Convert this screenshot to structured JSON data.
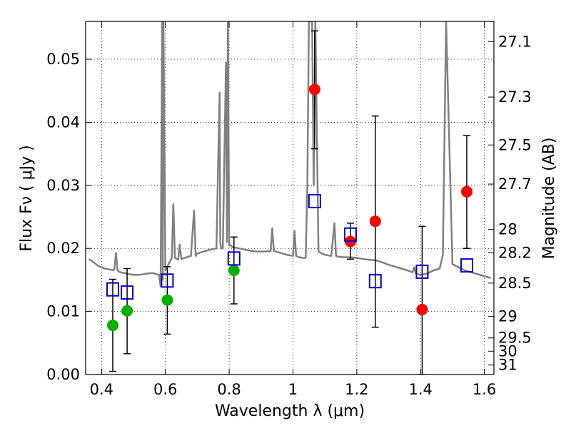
{
  "chart_data": {
    "type": "scatter",
    "xlabel": "Wavelength  λ (μm)",
    "ylabel": "Flux  Fν  ( μJy )",
    "y2label": "Magnitude (AB)",
    "xlim": [
      0.35,
      1.63
    ],
    "ylim": [
      0.0,
      0.056
    ],
    "grid": true,
    "x_ticks": [
      0.4,
      0.6,
      0.8,
      1.0,
      1.2,
      1.4,
      1.6
    ],
    "x_tick_labels": [
      "0.4",
      "0.6",
      "0.8",
      "1",
      "1.2",
      "1.4",
      "1.6"
    ],
    "y_ticks": [
      0.0,
      0.01,
      0.02,
      0.03,
      0.04,
      0.05
    ],
    "y_tick_labels": [
      "0.00",
      "0.01",
      "0.02",
      "0.03",
      "0.04",
      "0.05"
    ],
    "y2_ticks": [
      {
        "flux": 0.0528,
        "label": "27.1"
      },
      {
        "flux": 0.044,
        "label": "27.3"
      },
      {
        "flux": 0.0364,
        "label": "27.5"
      },
      {
        "flux": 0.0302,
        "label": "27.7"
      },
      {
        "flux": 0.023,
        "label": "28"
      },
      {
        "flux": 0.0193,
        "label": "28.2"
      },
      {
        "flux": 0.0145,
        "label": "28.5"
      },
      {
        "flux": 0.0092,
        "label": "29"
      },
      {
        "flux": 0.0058,
        "label": "29.5"
      },
      {
        "flux": 0.0037,
        "label": "30"
      },
      {
        "flux": 0.0015,
        "label": "31"
      }
    ],
    "series": [
      {
        "name": "model spectrum",
        "style": "line",
        "color": "#808080",
        "x": [
          0.36,
          0.37,
          0.38,
          0.39,
          0.4,
          0.41,
          0.42,
          0.43,
          0.44,
          0.445,
          0.45,
          0.455,
          0.46,
          0.48,
          0.5,
          0.52,
          0.54,
          0.56,
          0.58,
          0.585,
          0.59,
          0.592,
          0.594,
          0.6,
          0.62,
          0.625,
          0.63,
          0.64,
          0.645,
          0.65,
          0.66,
          0.68,
          0.69,
          0.695,
          0.7,
          0.72,
          0.74,
          0.76,
          0.77,
          0.772,
          0.775,
          0.78,
          0.79,
          0.793,
          0.796,
          0.8,
          0.805,
          0.81,
          0.83,
          0.85,
          0.87,
          0.89,
          0.91,
          0.93,
          0.935,
          0.94,
          0.96,
          0.98,
          1.0,
          1.005,
          1.01,
          1.02,
          1.03,
          1.04,
          1.045,
          1.05,
          1.06,
          1.065,
          1.07,
          1.08,
          1.09,
          1.1,
          1.12,
          1.13,
          1.135,
          1.14,
          1.16,
          1.18,
          1.2,
          1.22,
          1.24,
          1.26,
          1.28,
          1.3,
          1.32,
          1.34,
          1.36,
          1.375,
          1.38,
          1.385,
          1.4,
          1.42,
          1.44,
          1.46,
          1.47,
          1.48,
          1.5,
          1.52,
          1.54,
          1.56,
          1.58,
          1.6,
          1.62
        ],
        "y": [
          0.0183,
          0.018,
          0.0176,
          0.0172,
          0.017,
          0.0168,
          0.0167,
          0.0166,
          0.0166,
          0.0193,
          0.0165,
          0.0163,
          0.0162,
          0.016,
          0.0158,
          0.0158,
          0.016,
          0.0161,
          0.0158,
          0.014,
          0.056,
          0.015,
          0.056,
          0.0165,
          0.0185,
          0.027,
          0.0185,
          0.0182,
          0.0206,
          0.0183,
          0.0185,
          0.0188,
          0.026,
          0.0188,
          0.0192,
          0.0195,
          0.0198,
          0.02,
          0.0447,
          0.021,
          0.02,
          0.02,
          0.0495,
          0.021,
          0.056,
          0.0205,
          0.0205,
          0.0202,
          0.02,
          0.0198,
          0.0196,
          0.0195,
          0.0195,
          0.0196,
          0.0232,
          0.0196,
          0.0193,
          0.019,
          0.0188,
          0.0228,
          0.0188,
          0.0186,
          0.0185,
          0.0185,
          0.03,
          0.056,
          0.056,
          0.03,
          0.056,
          0.0195,
          0.0192,
          0.019,
          0.0188,
          0.024,
          0.0188,
          0.0187,
          0.0186,
          0.0186,
          0.0185,
          0.0183,
          0.0182,
          0.0181,
          0.0178,
          0.0174,
          0.0171,
          0.0168,
          0.0165,
          0.0162,
          0.017,
          0.016,
          0.0158,
          0.016,
          0.0165,
          0.0168,
          0.019,
          0.056,
          0.0175,
          0.017,
          0.0165,
          0.0162,
          0.0159,
          0.0156,
          0.0153
        ]
      },
      {
        "name": "red points",
        "style": "circle",
        "color": "#ff0000",
        "x": [
          1.068,
          1.18,
          1.258,
          1.405,
          1.545
        ],
        "y": [
          0.0452,
          0.0211,
          0.0243,
          0.0103,
          0.029
        ],
        "yerr_low": [
          0.0358,
          0.0183,
          0.0075,
          0.0,
          0.02
        ],
        "yerr_high": [
          0.0545,
          0.024,
          0.041,
          0.0235,
          0.0379
        ]
      },
      {
        "name": "green points",
        "style": "circle",
        "color": "#00b000",
        "x": [
          0.435,
          0.48,
          0.606,
          0.815
        ],
        "y": [
          0.0078,
          0.0101,
          0.0118,
          0.0165
        ],
        "yerr_low": [
          0.0005,
          0.0033,
          0.0064,
          0.0112
        ],
        "yerr_high": [
          0.0151,
          0.0168,
          0.0171,
          0.0218
        ]
      },
      {
        "name": "blue squares",
        "style": "square-open",
        "color": "#0000cc",
        "x": [
          0.435,
          0.48,
          0.606,
          0.815,
          1.068,
          1.18,
          1.258,
          1.405,
          1.545
        ],
        "y": [
          0.0135,
          0.013,
          0.0149,
          0.0184,
          0.0275,
          0.0222,
          0.0148,
          0.0163,
          0.0173
        ]
      }
    ]
  }
}
